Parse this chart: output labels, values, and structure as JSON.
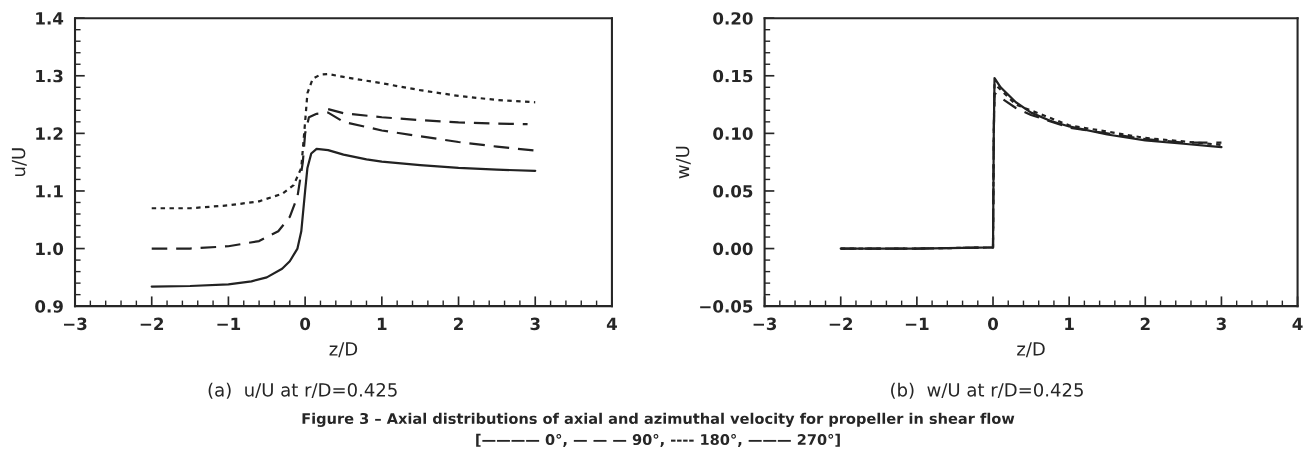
{
  "chart_data": [
    {
      "type": "line",
      "xlabel": "z/D",
      "ylabel": "u/U",
      "subtitle": "(a)  u/U at r/D=0.425",
      "xlim": [
        -3,
        4
      ],
      "xticks": [
        {
          "value": -3,
          "label": "−3"
        },
        {
          "value": -2,
          "label": "−2"
        },
        {
          "value": -1,
          "label": "−1"
        },
        0,
        1,
        2,
        3,
        4
      ],
      "ylim": [
        0.9,
        1.4
      ],
      "yticks": [
        {
          "value": 0.9,
          "label": "0.9"
        },
        {
          "value": 1.0,
          "label": "1.0"
        },
        {
          "value": 1.1,
          "label": "1.1"
        },
        {
          "value": 1.2,
          "label": "1.2"
        },
        {
          "value": 1.3,
          "label": "1.3"
        },
        {
          "value": 1.4,
          "label": "1.4"
        }
      ],
      "grid": false,
      "legend": false,
      "annotations": [
        "Figure 3 – Axial distributions of axial and azimuthal velocity for propeller in shear flow",
        "[———— 0°, — — — 90°, ---- 180°, ——— 270°]"
      ],
      "series": [
        {
          "color": "#222222",
          "line_style": "solid",
          "x": [
            -2,
            -1.5,
            -1,
            -0.7,
            -0.5,
            -0.3,
            -0.2,
            -0.1,
            -0.05,
            0,
            0.03,
            0.08,
            0.15,
            0.3,
            0.5,
            0.8,
            1,
            1.5,
            2,
            2.5,
            3
          ],
          "values": [
            0.934,
            0.935,
            0.938,
            0.943,
            0.95,
            0.965,
            0.978,
            1.0,
            1.03,
            1.1,
            1.14,
            1.165,
            1.173,
            1.171,
            1.163,
            1.155,
            1.151,
            1.145,
            1.14,
            1.137,
            1.135
          ]
        },
        {
          "color": "#222222",
          "line_style": "dotted",
          "x": [
            -2,
            -1.5,
            -1,
            -0.6,
            -0.3,
            -0.15,
            -0.05,
            0,
            0.03,
            0.1,
            0.2,
            0.3,
            0.5,
            1,
            1.5,
            2,
            2.5,
            3
          ],
          "values": [
            1.07,
            1.07,
            1.075,
            1.082,
            1.095,
            1.11,
            1.14,
            1.22,
            1.27,
            1.295,
            1.302,
            1.303,
            1.298,
            1.287,
            1.275,
            1.265,
            1.258,
            1.254
          ]
        },
        {
          "color": "#222222",
          "line_style": "dashed",
          "x": [
            -2,
            -1.5,
            -1,
            -0.6,
            -0.35,
            -0.2,
            -0.1,
            -0.03,
            0,
            0.05,
            0.15,
            0.3,
            0.5,
            1,
            1.5,
            2,
            2.5,
            3
          ],
          "values": [
            1.0,
            1.0,
            1.004,
            1.013,
            1.03,
            1.055,
            1.09,
            1.15,
            1.2,
            1.228,
            1.234,
            1.236,
            1.22,
            1.205,
            1.195,
            1.185,
            1.177,
            1.17
          ]
        },
        {
          "color": "#222222",
          "line_style": "dashed",
          "x": [
            0.3,
            0.5,
            1,
            1.5,
            2,
            2.5,
            2.9
          ],
          "values": [
            1.242,
            1.235,
            1.228,
            1.223,
            1.219,
            1.217,
            1.216
          ]
        }
      ]
    },
    {
      "type": "line",
      "xlabel": "z/D",
      "ylabel": "w/U",
      "subtitle": "(b)  w/U at r/D=0.425",
      "xlim": [
        -3,
        4
      ],
      "xticks": [
        {
          "value": -3,
          "label": "−3"
        },
        {
          "value": -2,
          "label": "−2"
        },
        {
          "value": -1,
          "label": "−1"
        },
        0,
        1,
        2,
        3,
        4
      ],
      "ylim": [
        -0.05,
        0.2
      ],
      "yticks": [
        {
          "value": -0.05,
          "label": "−0.05"
        },
        {
          "value": 0,
          "label": "0.00"
        },
        {
          "value": 0.05,
          "label": "0.05"
        },
        {
          "value": 0.1,
          "label": "0.10"
        },
        {
          "value": 0.15,
          "label": "0.15"
        },
        {
          "value": 0.2,
          "label": "0.20"
        }
      ],
      "grid": false,
      "legend": false,
      "series": [
        {
          "color": "#222222",
          "line_style": "solid",
          "x": [
            -2,
            -1,
            0,
            0.01,
            0.02,
            0.1,
            0.3,
            0.5,
            0.75,
            1,
            1.5,
            2,
            2.5,
            3
          ],
          "values": [
            0,
            0,
            0.001,
            0.1,
            0.148,
            0.14,
            0.127,
            0.118,
            0.111,
            0.106,
            0.099,
            0.094,
            0.091,
            0.088
          ]
        },
        {
          "color": "#222222",
          "line_style": "dashed",
          "x": [
            -2,
            -1,
            0,
            0.01,
            0.02,
            0.1,
            0.3,
            0.5,
            1,
            1.5,
            2,
            2.5,
            3
          ],
          "values": [
            0,
            0,
            0.001,
            0.1,
            0.135,
            0.131,
            0.122,
            0.116,
            0.105,
            0.1,
            0.095,
            0.092,
            0.092
          ]
        },
        {
          "color": "#222222",
          "line_style": "dotted",
          "x": [
            -2,
            -1,
            0,
            0.01,
            0.02,
            0.3,
            1,
            2,
            3
          ],
          "values": [
            0,
            0,
            0.001,
            0.1,
            0.143,
            0.125,
            0.107,
            0.096,
            0.09
          ]
        }
      ]
    }
  ]
}
